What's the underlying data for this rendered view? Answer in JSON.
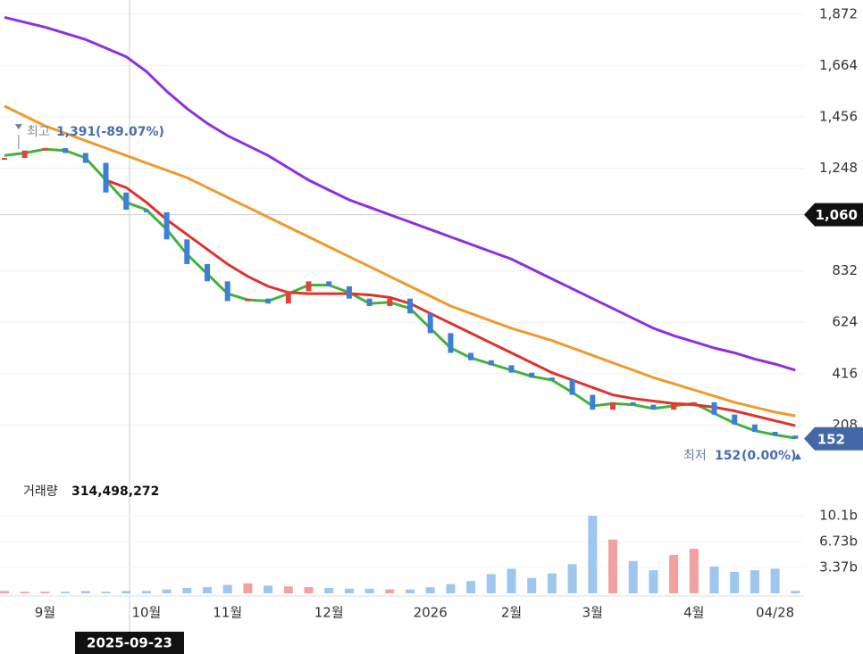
{
  "chart_data": [
    {
      "type": "candlestick",
      "categories": [
        null,
        null,
        "9월",
        null,
        null,
        null,
        null,
        "10월",
        null,
        null,
        null,
        "11월",
        null,
        null,
        null,
        null,
        "12월",
        null,
        null,
        null,
        null,
        "2026",
        null,
        null,
        null,
        "2월",
        null,
        null,
        null,
        "3월",
        null,
        null,
        null,
        null,
        "4월",
        null,
        null,
        null,
        "04/28",
        null
      ],
      "values": [
        1290,
        1320,
        1330,
        1310,
        1270,
        1150,
        1080,
        1070,
        960,
        860,
        790,
        710,
        720,
        700,
        750,
        790,
        770,
        720,
        690,
        720,
        660,
        580,
        500,
        470,
        450,
        420,
        400,
        390,
        330,
        270,
        300,
        290,
        270,
        290,
        300,
        250,
        210,
        180,
        165,
        152
      ],
      "colors": {
        "up": "#e8413b",
        "down": "#3d7fd6"
      },
      "lines": [
        {
          "color": "#41b33a",
          "values": [
            1300,
            1310,
            1325,
            1320,
            1290,
            1200,
            1110,
            1080,
            1000,
            900,
            820,
            740,
            715,
            710,
            740,
            775,
            775,
            745,
            700,
            705,
            680,
            600,
            520,
            480,
            455,
            430,
            405,
            390,
            340,
            285,
            295,
            290,
            275,
            285,
            295,
            255,
            215,
            185,
            168,
            155
          ]
        },
        {
          "color": "#e0322d",
          "values": [
            null,
            null,
            null,
            null,
            null,
            1200,
            1170,
            1110,
            1040,
            980,
            920,
            860,
            810,
            770,
            745,
            740,
            740,
            740,
            735,
            725,
            700,
            660,
            620,
            580,
            540,
            500,
            460,
            420,
            390,
            360,
            330,
            315,
            305,
            295,
            290,
            280,
            265,
            245,
            225,
            205
          ]
        },
        {
          "color": "#ef9a2a",
          "values": [
            1500,
            1460,
            1420,
            1390,
            1360,
            1330,
            1300,
            1270,
            1240,
            1210,
            1170,
            1130,
            1090,
            1050,
            1010,
            970,
            930,
            890,
            850,
            810,
            770,
            730,
            690,
            660,
            630,
            600,
            575,
            550,
            520,
            490,
            460,
            430,
            400,
            375,
            350,
            325,
            300,
            280,
            260,
            245
          ]
        },
        {
          "color": "#8f2fe0",
          "values": [
            1860,
            1840,
            1820,
            1795,
            1770,
            1735,
            1700,
            1640,
            1560,
            1490,
            1430,
            1380,
            1340,
            1300,
            1250,
            1200,
            1160,
            1120,
            1090,
            1060,
            1030,
            1000,
            970,
            940,
            910,
            880,
            840,
            800,
            760,
            720,
            680,
            640,
            600,
            570,
            545,
            520,
            500,
            475,
            455,
            430
          ]
        }
      ],
      "ylim": [
        50,
        1930
      ],
      "yticks": [
        208,
        416,
        624,
        832,
        {
          "value": 1248,
          "label": "1,248"
        },
        {
          "value": 1456,
          "label": "1,456"
        },
        {
          "value": 1664,
          "label": "1,664"
        },
        {
          "value": 1872,
          "label": "1,872"
        }
      ],
      "grid": true,
      "crosshair": {
        "date": "2025-09-23",
        "price": {
          "value": 1060,
          "label": "1,060"
        }
      },
      "high": {
        "label": "최고",
        "price": {
          "value": 1391,
          "label": "1,391"
        },
        "change": "(-89.07%)"
      },
      "low": {
        "label": "최저",
        "price": {
          "value": 152,
          "label": "152"
        },
        "change": "(0.00%)"
      }
    },
    {
      "type": "bar",
      "title": "거래량",
      "current": {
        "value": 314498272,
        "label": "314,498,272"
      },
      "values": [
        300000000,
        200000000,
        200000000,
        200000000,
        300000000,
        200000000,
        300000000,
        300000000,
        500000000,
        700000000,
        800000000,
        1100000000,
        1300000000,
        1000000000,
        900000000,
        800000000,
        700000000,
        600000000,
        600000000,
        500000000,
        500000000,
        800000000,
        1200000000,
        1600000000,
        2500000000,
        3200000000,
        2000000000,
        2600000000,
        3800000000,
        10100000000,
        7000000000,
        4200000000,
        3000000000,
        5000000000,
        5800000000,
        3500000000,
        2800000000,
        3000000000,
        3200000000,
        314498272
      ],
      "colors": {
        "up": "#f2a0a0",
        "down": "#9ec6ee"
      },
      "ylim": [
        0,
        12200000000
      ],
      "yticks": [
        {
          "value": 3370000000,
          "label": "3.37b"
        },
        {
          "value": 6730000000,
          "label": "6.73b"
        },
        {
          "value": 10100000000,
          "label": "10.1b"
        }
      ]
    }
  ]
}
